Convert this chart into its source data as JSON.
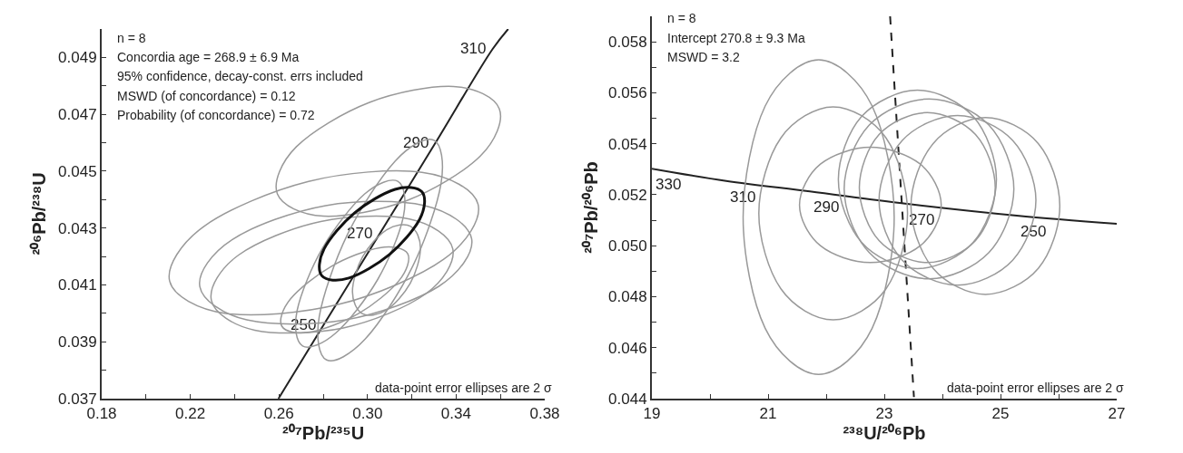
{
  "chart_data": [
    {
      "type": "line",
      "xlabel": "²⁰⁷Pb/²³⁵U",
      "ylabel": "²⁰⁶Pb/²³⁸U",
      "xlim": [
        0.18,
        0.38
      ],
      "ylim": [
        0.037,
        0.05
      ],
      "xticks": [
        {
          "value": 0.18,
          "label": "0.18"
        },
        {
          "value": 0.2,
          "label": null
        },
        {
          "value": 0.22,
          "label": "0.22"
        },
        {
          "value": 0.24,
          "label": null
        },
        {
          "value": 0.26,
          "label": "0.26"
        },
        {
          "value": 0.28,
          "label": null
        },
        {
          "value": 0.3,
          "label": "0.30"
        },
        {
          "value": 0.32,
          "label": null
        },
        {
          "value": 0.34,
          "label": "0.34"
        },
        {
          "value": 0.36,
          "label": null
        },
        {
          "value": 0.38,
          "label": "0.38"
        }
      ],
      "yticks": [
        0.037,
        {
          "value": 0.038,
          "label": null
        },
        0.039,
        {
          "value": 0.04,
          "label": null
        },
        0.041,
        {
          "value": 0.042,
          "label": null
        },
        0.043,
        {
          "value": 0.044,
          "label": null
        },
        0.045,
        {
          "value": 0.046,
          "label": null
        },
        0.047,
        {
          "value": 0.048,
          "label": null
        },
        0.049
      ],
      "grid": false,
      "marker": "none",
      "line_style": "solid",
      "series": [
        {
          "color": "#222222",
          "x": [
            0.2598,
            0.2802,
            0.3055,
            0.3307,
            0.3565,
            0.3635
          ],
          "values": [
            0.037,
            0.0396,
            0.0428,
            0.046,
            0.0493,
            0.05
          ]
        }
      ],
      "annotations": [
        "n = 8",
        "Concordia age = 268.9 ± 6.9 Ma",
        "95% confidence, decay-const. errs included",
        "MSWD (of concordance) = 0.12",
        "Probability (of concordance) = 0.72",
        "data-point error ellipses are 2 σ",
        {
          "text": "250",
          "x": 0.2802,
          "y": 0.0396
        },
        {
          "text": "270",
          "x": 0.3055,
          "y": 0.0428
        },
        {
          "text": "290",
          "x": 0.3307,
          "y": 0.046
        },
        {
          "text": "310",
          "x": 0.3565,
          "y": 0.0493
        }
      ]
    },
    {
      "type": "line",
      "xlabel": "²³⁸U/²⁰⁶Pb",
      "ylabel": "²⁰⁷Pb/²⁰⁶Pb",
      "xlim": [
        19,
        27
      ],
      "ylim": [
        0.044,
        0.059
      ],
      "xticks": [
        19,
        {
          "value": 20,
          "label": null
        },
        21,
        {
          "value": 22,
          "label": null
        },
        23,
        {
          "value": 24,
          "label": null
        },
        25,
        {
          "value": 26,
          "label": null
        },
        27
      ],
      "yticks": [
        {
          "value": 0.044,
          "label": "0.044"
        },
        {
          "value": 0.045,
          "label": null
        },
        {
          "value": 0.046,
          "label": "0.046"
        },
        {
          "value": 0.047,
          "label": null
        },
        {
          "value": 0.048,
          "label": "0.048"
        },
        {
          "value": 0.049,
          "label": null
        },
        {
          "value": 0.05,
          "label": "0.050"
        },
        {
          "value": 0.051,
          "label": null
        },
        {
          "value": 0.052,
          "label": "0.052"
        },
        {
          "value": 0.053,
          "label": null
        },
        {
          "value": 0.054,
          "label": "0.054"
        },
        {
          "value": 0.055,
          "label": null
        },
        {
          "value": 0.056,
          "label": "0.056"
        },
        {
          "value": 0.057,
          "label": null
        },
        {
          "value": 0.058,
          "label": "0.058"
        }
      ],
      "grid": false,
      "marker": "none",
      "line_style": "solid",
      "series": [
        {
          "color": "#222222",
          "x": [
            19,
            20.28,
            21.72,
            23.36,
            25.28,
            27
          ],
          "values": [
            0.05302,
            0.05254,
            0.05213,
            0.05165,
            0.05118,
            0.05086
          ]
        },
        {
          "color": "#222222",
          "line_style": "dashed",
          "x": [
            23.1,
            23.51
          ],
          "values": [
            0.059,
            0.04406
          ]
        }
      ],
      "annotations": [
        "n = 8",
        "Intercept 270.8 ± 9.3 Ma",
        "MSWD = 3.2",
        "data-point error ellipses are 2 σ",
        {
          "text": "330",
          "x": 19,
          "y": 0.05302
        },
        {
          "text": "310",
          "x": 20.28,
          "y": 0.05254
        },
        {
          "text": "290",
          "x": 21.72,
          "y": 0.05213
        },
        {
          "text": "270",
          "x": 23.36,
          "y": 0.05165
        },
        {
          "text": "250",
          "x": 25.28,
          "y": 0.05118
        }
      ]
    }
  ]
}
